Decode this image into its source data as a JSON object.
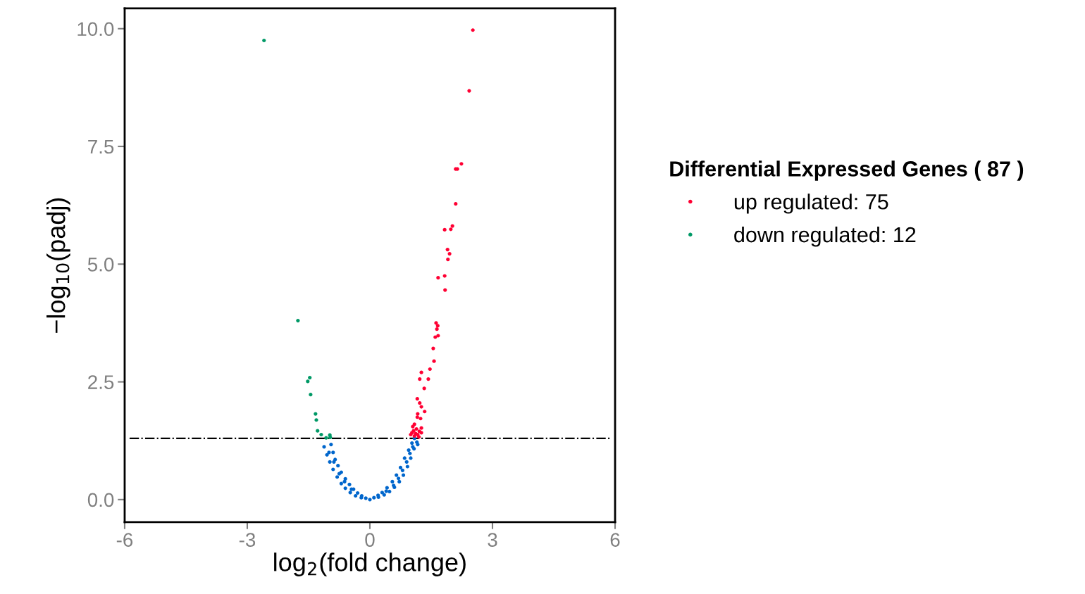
{
  "chart_data": {
    "type": "scatter",
    "xlabel": "log$_{2}$(fold change)",
    "ylabel": "−log$_{10}$(padj)",
    "legend_title": "Differential Expressed Genes ( 87 )",
    "xlim": [
      -6,
      6
    ],
    "xticks": [
      -6,
      -3,
      0,
      3,
      6
    ],
    "ylim": [
      -0.48,
      10.43
    ],
    "yticks": [
      {
        "value": 0,
        "label": "0.0"
      },
      {
        "value": 2.5,
        "label": "2.5"
      },
      {
        "value": 5,
        "label": "5.0"
      },
      {
        "value": 7.5,
        "label": "7.5"
      },
      {
        "value": 10,
        "label": "10.0"
      }
    ],
    "grid": false,
    "legend": "right",
    "marker": "circle",
    "ref_lines": [
      {
        "axis": "y",
        "value": 1.3,
        "color": "#000000",
        "line_style": "dashdot"
      }
    ],
    "series": [
      {
        "color": "#0066cc",
        "x": [
          -1.12,
          -1.05,
          -0.98,
          -0.9,
          -0.8,
          -0.7,
          -0.6,
          -0.48,
          -0.35,
          -0.21,
          0,
          -0.95,
          -0.9,
          -0.85,
          -0.78,
          -0.7,
          -0.6,
          -0.5,
          -0.4,
          -0.3,
          -0.2,
          -0.1,
          0.21,
          0.35,
          0.48,
          0.6,
          0.72,
          0.82,
          0.92,
          1.0,
          1.08,
          1.15,
          1.17,
          0.1,
          0.2,
          0.3,
          0.42,
          0.55,
          0.65,
          0.75,
          0.85,
          0.95,
          1.03,
          1.09,
          -1.0,
          -0.88,
          -0.75,
          -0.62,
          -0.45,
          0.4,
          0.58,
          0.7,
          0.8,
          0.9,
          0.98,
          1.05
        ],
        "values": [
          1.12,
          0.95,
          0.8,
          0.64,
          0.48,
          0.34,
          0.24,
          0.15,
          0.08,
          0.04,
          0.0,
          1.17,
          1.0,
          0.85,
          0.72,
          0.58,
          0.44,
          0.32,
          0.22,
          0.14,
          0.08,
          0.03,
          0.05,
          0.1,
          0.17,
          0.26,
          0.38,
          0.52,
          0.7,
          0.88,
          1.08,
          1.22,
          1.17,
          0.04,
          0.09,
          0.15,
          0.25,
          0.38,
          0.52,
          0.68,
          0.88,
          1.05,
          1.2,
          1.3,
          1.0,
          0.8,
          0.55,
          0.38,
          0.22,
          0.18,
          0.3,
          0.45,
          0.62,
          0.8,
          0.98,
          1.12
        ]
      },
      {
        "name": "up regulated: 75",
        "color": "#ff0033",
        "x": [
          2.52,
          2.43,
          2.24,
          2.14,
          2.1,
          2.1,
          2.02,
          1.98,
          1.83,
          1.9,
          1.95,
          1.91,
          1.83,
          1.67,
          1.84,
          1.62,
          1.66,
          1.64,
          1.67,
          1.6,
          1.55,
          1.57,
          1.47,
          1.26,
          1.22,
          1.43,
          1.33,
          1.16,
          1.22,
          1.26,
          1.34,
          1.17,
          1.24,
          1.16,
          1.09,
          1.26,
          1.07,
          1.21,
          1.03,
          1.12,
          1.26,
          1.0,
          1.17,
          1.09,
          1.14,
          1.2,
          1.05
        ],
        "values": [
          9.97,
          8.68,
          7.13,
          7.02,
          7.02,
          6.28,
          5.81,
          5.74,
          5.73,
          5.31,
          5.22,
          5.1,
          4.75,
          4.71,
          4.45,
          3.75,
          3.69,
          3.62,
          3.48,
          3.45,
          3.21,
          2.94,
          2.77,
          2.7,
          2.56,
          2.56,
          2.36,
          2.14,
          2.05,
          1.97,
          1.87,
          1.82,
          1.72,
          1.75,
          1.6,
          1.52,
          1.46,
          1.45,
          1.42,
          1.4,
          1.42,
          1.38,
          1.38,
          1.35,
          1.5,
          1.33,
          1.55
        ]
      },
      {
        "name": "down regulated: 12",
        "color": "#009966",
        "x": [
          -2.59,
          -1.76,
          -1.47,
          -1.52,
          -1.45,
          -1.33,
          -1.31,
          -1.28,
          -1.19,
          -0.98,
          -0.97,
          -1.07
        ],
        "values": [
          9.75,
          3.8,
          2.59,
          2.51,
          2.23,
          1.82,
          1.69,
          1.46,
          1.38,
          1.37,
          1.32,
          1.31
        ]
      }
    ]
  }
}
